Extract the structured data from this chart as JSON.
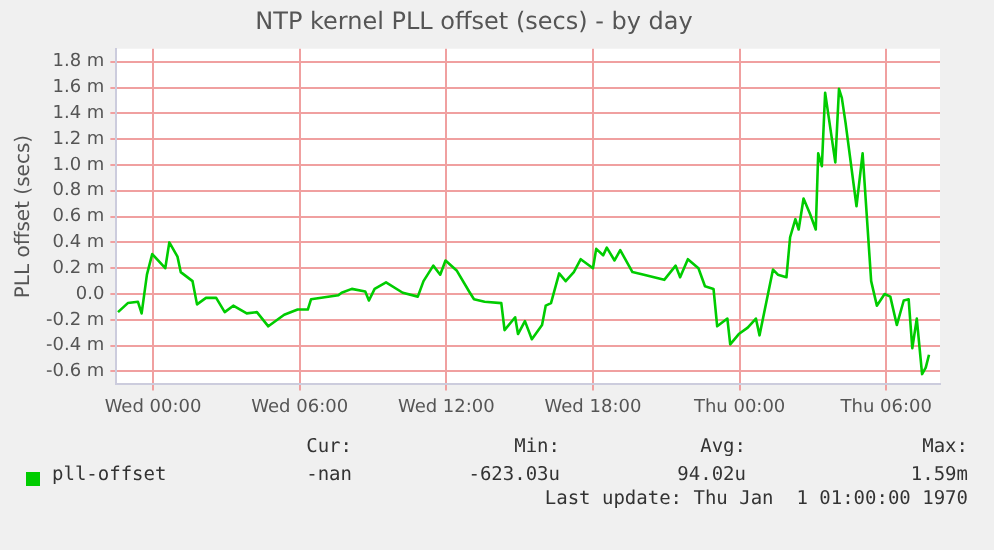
{
  "chart_data": {
    "type": "line",
    "title": "NTP kernel PLL offset (secs) - by day",
    "ylabel": "PLL offset (secs)",
    "x": [
      "1969-12-30T22:34",
      "1969-12-30T22:58",
      "1969-12-30T23:23",
      "1969-12-30T23:32",
      "1969-12-30T23:45",
      "1969-12-30T23:58",
      "1969-12-31T00:30",
      "1969-12-31T00:40",
      "1969-12-31T01:00",
      "1969-12-31T01:08",
      "1969-12-31T01:37",
      "1969-12-31T01:48",
      "1969-12-31T02:10",
      "1969-12-31T02:35",
      "1969-12-31T02:56",
      "1969-12-31T03:17",
      "1969-12-31T03:50",
      "1969-12-31T04:15",
      "1969-12-31T04:43",
      "1969-12-31T05:22",
      "1969-12-31T05:55",
      "1969-12-31T06:20",
      "1969-12-31T06:28",
      "1969-12-31T07:35",
      "1969-12-31T07:43",
      "1969-12-31T08:08",
      "1969-12-31T08:41",
      "1969-12-31T08:50",
      "1969-12-31T09:04",
      "1969-12-31T09:32",
      "1969-12-31T10:13",
      "1969-12-31T10:50",
      "1969-12-31T11:04",
      "1969-12-31T11:28",
      "1969-12-31T11:45",
      "1969-12-31T11:58",
      "1969-12-31T12:26",
      "1969-12-31T12:56",
      "1969-12-31T13:08",
      "1969-12-31T13:34",
      "1969-12-31T14:15",
      "1969-12-31T14:23",
      "1969-12-31T14:49",
      "1969-12-31T14:56",
      "1969-12-31T15:13",
      "1969-12-31T15:30",
      "1969-12-31T15:55",
      "1969-12-31T16:04",
      "1969-12-31T16:17",
      "1969-12-31T16:37",
      "1969-12-31T16:53",
      "1969-12-31T17:13",
      "1969-12-31T17:30",
      "1969-12-31T18:00",
      "1969-12-31T18:08",
      "1969-12-31T18:25",
      "1969-12-31T18:34",
      "1969-12-31T18:53",
      "1969-12-31T19:07",
      "1969-12-31T19:37",
      "1969-12-31T20:05",
      "1969-12-31T20:55",
      "1969-12-31T21:23",
      "1969-12-31T21:34",
      "1969-12-31T21:53",
      "1969-12-31T22:19",
      "1969-12-31T22:35",
      "1969-12-31T22:56",
      "1969-12-31T23:05",
      "1969-12-31T23:30",
      "1969-12-31T23:37",
      "1969-12-31T23:58",
      "1970-01-01T00:20",
      "1970-01-01T00:40",
      "1970-01-01T00:49",
      "1970-01-01T01:22",
      "1970-01-01T01:34",
      "1970-01-01T01:55",
      "1970-01-01T02:04",
      "1970-01-01T02:17",
      "1970-01-01T02:25",
      "1970-01-01T02:37",
      "1970-01-01T02:53",
      "1970-01-01T03:07",
      "1970-01-01T03:13",
      "1970-01-01T03:22",
      "1970-01-01T03:30",
      "1970-01-01T03:55",
      "1970-01-01T04:04",
      "1970-01-01T04:11",
      "1970-01-01T04:20",
      "1970-01-01T04:47",
      "1970-01-01T05:02",
      "1970-01-01T05:23",
      "1970-01-01T05:37",
      "1970-01-01T05:56",
      "1970-01-01T06:10",
      "1970-01-01T06:26",
      "1970-01-01T06:43",
      "1970-01-01T06:55",
      "1970-01-01T07:04",
      "1970-01-01T07:15",
      "1970-01-01T07:28",
      "1970-01-01T07:37",
      "1970-01-01T07:45"
    ],
    "series": [
      {
        "name": "pll-offset",
        "color": "#00cc00",
        "values": [
          -0.14,
          -0.07,
          -0.06,
          -0.15,
          0.15,
          0.31,
          0.2,
          0.4,
          0.29,
          0.17,
          0.1,
          -0.08,
          -0.03,
          -0.03,
          -0.14,
          -0.09,
          -0.15,
          -0.14,
          -0.25,
          -0.16,
          -0.12,
          -0.12,
          -0.04,
          -0.01,
          0.01,
          0.04,
          0.02,
          -0.05,
          0.04,
          0.09,
          0.01,
          -0.02,
          0.1,
          0.22,
          0.15,
          0.26,
          0.18,
          0.02,
          -0.04,
          -0.06,
          -0.07,
          -0.28,
          -0.18,
          -0.31,
          -0.21,
          -0.35,
          -0.24,
          -0.09,
          -0.07,
          0.16,
          0.1,
          0.17,
          0.27,
          0.2,
          0.35,
          0.3,
          0.36,
          0.26,
          0.34,
          0.17,
          0.15,
          0.11,
          0.22,
          0.13,
          0.27,
          0.2,
          0.06,
          0.04,
          -0.25,
          -0.19,
          -0.39,
          -0.31,
          -0.26,
          -0.19,
          -0.32,
          0.19,
          0.15,
          0.13,
          0.44,
          0.58,
          0.5,
          0.74,
          0.62,
          0.5,
          1.09,
          0.99,
          1.56,
          1.02,
          1.59,
          1.52,
          1.33,
          0.68,
          1.09,
          0.1,
          -0.09,
          0,
          -0.02,
          -0.24,
          -0.05,
          -0.04,
          -0.42,
          -0.19,
          -0.62,
          -0.57,
          -0.47
        ]
      }
    ],
    "xlim": [
      "1969-12-30T22:30",
      "1970-01-01T08:12"
    ],
    "xticks": [
      {
        "value": "1969-12-31T00:00",
        "label": "Wed 00:00"
      },
      {
        "value": "1969-12-31T06:00",
        "label": "Wed 06:00"
      },
      {
        "value": "1969-12-31T12:00",
        "label": "Wed 12:00"
      },
      {
        "value": "1969-12-31T18:00",
        "label": "Wed 18:00"
      },
      {
        "value": "1970-01-01T00:00",
        "label": "Thu 00:00"
      },
      {
        "value": "1970-01-01T06:00",
        "label": "Thu 06:00"
      }
    ],
    "ylim": [
      -0.7,
      1.9
    ],
    "yticks": [
      {
        "value": -0.6,
        "label": "-0.6 m"
      },
      {
        "value": -0.4,
        "label": "-0.4 m"
      },
      {
        "value": -0.2,
        "label": "-0.2 m"
      },
      {
        "value": 0,
        "label": "0.0"
      },
      {
        "value": 0.2,
        "label": "0.2 m"
      },
      {
        "value": 0.4,
        "label": "0.4 m"
      },
      {
        "value": 0.6,
        "label": "0.6 m"
      },
      {
        "value": 0.8,
        "label": "0.8 m"
      },
      {
        "value": 1.0,
        "label": "1.0 m"
      },
      {
        "value": 1.2,
        "label": "1.2 m"
      },
      {
        "value": 1.4,
        "label": "1.4 m"
      },
      {
        "value": 1.6,
        "label": "1.6 m"
      },
      {
        "value": 1.8,
        "label": "1.8 m"
      }
    ],
    "grid": true,
    "legend": "bottom",
    "marker": "none",
    "line_style": "solid",
    "annotations": [
      "Cur:",
      "Min:",
      "Avg:",
      "Max:",
      "-nan",
      "-623.03u",
      "94.02u",
      "1.59m",
      "Last update: Thu Jan  1 01:00:00 1970"
    ]
  }
}
